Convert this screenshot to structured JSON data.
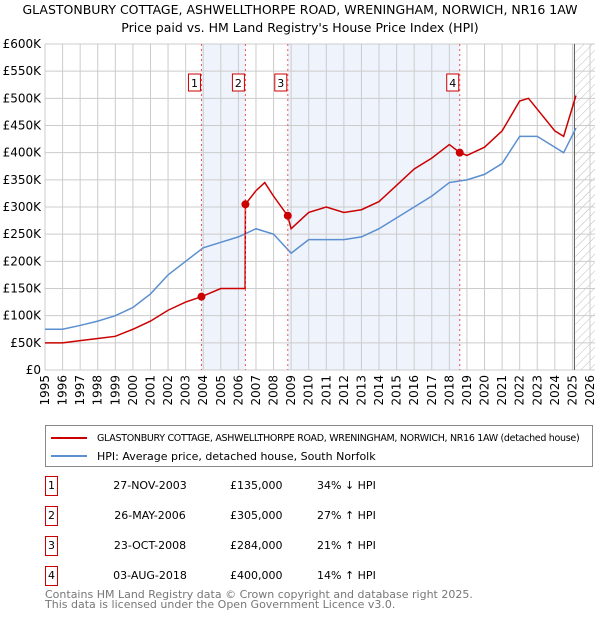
{
  "title": "GLASTONBURY COTTAGE, ASHWELLTHORPE ROAD, WRENINGHAM, NORWICH, NR16 1AW",
  "subtitle": "Price paid vs. HM Land Registry's House Price Index (HPI)",
  "chart_data": {
    "type": "line",
    "ylim": [
      0,
      600000
    ],
    "xlim": [
      1995,
      2026
    ],
    "yticks": [
      {
        "v": 0,
        "l": "£0"
      },
      {
        "v": 50000,
        "l": "£50K"
      },
      {
        "v": 100000,
        "l": "£100K"
      },
      {
        "v": 150000,
        "l": "£150K"
      },
      {
        "v": 200000,
        "l": "£200K"
      },
      {
        "v": 250000,
        "l": "£250K"
      },
      {
        "v": 300000,
        "l": "£300K"
      },
      {
        "v": 350000,
        "l": "£350K"
      },
      {
        "v": 400000,
        "l": "£400K"
      },
      {
        "v": 450000,
        "l": "£450K"
      },
      {
        "v": 500000,
        "l": "£500K"
      },
      {
        "v": 550000,
        "l": "£550K"
      },
      {
        "v": 600000,
        "l": "£600K"
      }
    ],
    "xticks": [
      "1995",
      "1996",
      "1997",
      "1998",
      "1999",
      "2000",
      "2001",
      "2002",
      "2003",
      "2004",
      "2005",
      "2006",
      "2007",
      "2008",
      "2009",
      "2010",
      "2011",
      "2012",
      "2013",
      "2014",
      "2015",
      "2016",
      "2017",
      "2018",
      "2019",
      "2020",
      "2021",
      "2022",
      "2023",
      "2024",
      "2025",
      "2026"
    ],
    "series": [
      {
        "name": "GLASTONBURY COTTAGE, ASHWELLTHORPE ROAD, WRENINGHAM, NORWICH, NR16 1AW (detached house)",
        "color": "#cc0000",
        "x": [
          1995,
          1996,
          1997,
          1998,
          1999,
          2000,
          2001,
          2002,
          2003,
          2003.9,
          2005,
          2006.38,
          2006.4,
          2007,
          2007.5,
          2008,
          2008.8,
          2009,
          2010,
          2011,
          2012,
          2013,
          2014,
          2015,
          2016,
          2017,
          2018,
          2018.6,
          2019,
          2020,
          2021,
          2022,
          2022.5,
          2023,
          2024,
          2024.5,
          2025.2
        ],
        "y": [
          50000,
          50000,
          54000,
          58000,
          62000,
          75000,
          90000,
          110000,
          125000,
          135000,
          150000,
          150000,
          305000,
          330000,
          345000,
          320000,
          284000,
          260000,
          290000,
          300000,
          290000,
          295000,
          310000,
          340000,
          370000,
          390000,
          415000,
          400000,
          395000,
          410000,
          440000,
          495000,
          500000,
          480000,
          440000,
          430000,
          505000
        ]
      },
      {
        "name": "HPI: Average price, detached house, South Norfolk",
        "color": "#5b8fd0",
        "x": [
          1995,
          1996,
          1997,
          1998,
          1999,
          2000,
          2001,
          2002,
          2003,
          2004,
          2005,
          2006,
          2007,
          2008,
          2009,
          2010,
          2011,
          2012,
          2013,
          2014,
          2015,
          2016,
          2017,
          2018,
          2019,
          2020,
          2021,
          2022,
          2023,
          2024,
          2024.5,
          2025.2
        ],
        "y": [
          75000,
          75000,
          82000,
          90000,
          100000,
          115000,
          140000,
          175000,
          200000,
          225000,
          235000,
          245000,
          260000,
          250000,
          215000,
          240000,
          240000,
          240000,
          245000,
          260000,
          280000,
          300000,
          320000,
          345000,
          350000,
          360000,
          380000,
          430000,
          430000,
          410000,
          400000,
          445000
        ]
      }
    ],
    "sales": [
      {
        "n": "1",
        "date": "27-NOV-2003",
        "x": 2003.9,
        "price": "£135,000",
        "v": 135000,
        "hpi": "34% ↓ HPI"
      },
      {
        "n": "2",
        "date": "26-MAY-2006",
        "x": 2006.4,
        "price": "£305,000",
        "v": 305000,
        "hpi": "27% ↑ HPI"
      },
      {
        "n": "3",
        "date": "23-OCT-2008",
        "x": 2008.81,
        "price": "£284,000",
        "v": 284000,
        "hpi": "21% ↑ HPI"
      },
      {
        "n": "4",
        "date": "03-AUG-2018",
        "x": 2018.59,
        "price": "£400,000",
        "v": 400000,
        "hpi": "14% ↑ HPI"
      }
    ],
    "forecast_start": 2025.0
  },
  "legend": {
    "red": "GLASTONBURY COTTAGE, ASHWELLTHORPE ROAD, WRENINGHAM, NORWICH, NR16 1AW (detached house)",
    "blue": "HPI: Average price, detached house, South Norfolk"
  },
  "footer": {
    "line1": "Contains HM Land Registry data © Crown copyright and database right 2025.",
    "line2": "This data is licensed under the Open Government Licence v3.0."
  }
}
